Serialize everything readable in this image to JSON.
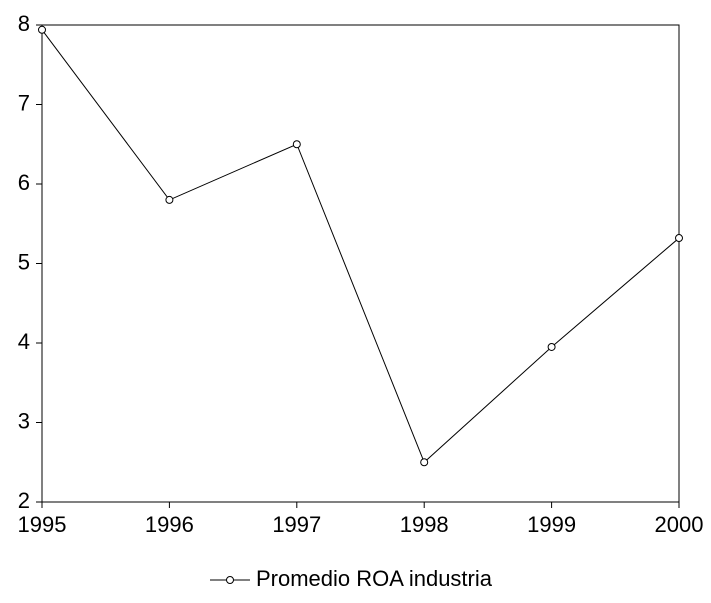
{
  "chart_data": {
    "type": "line",
    "x": [
      1995,
      1996,
      1997,
      1998,
      1999,
      2000
    ],
    "series": [
      {
        "name": "Promedio ROA industria",
        "color": "#000000",
        "values": [
          7.94,
          5.8,
          6.5,
          2.5,
          3.95,
          5.32
        ]
      }
    ],
    "xlim": [
      1995,
      2000
    ],
    "xticks": [
      1995,
      1996,
      1997,
      1998,
      1999,
      2000
    ],
    "ylim": [
      2,
      8
    ],
    "yticks": [
      2,
      3,
      4,
      5,
      6,
      7,
      8
    ],
    "grid": false,
    "legend": "bottom"
  }
}
